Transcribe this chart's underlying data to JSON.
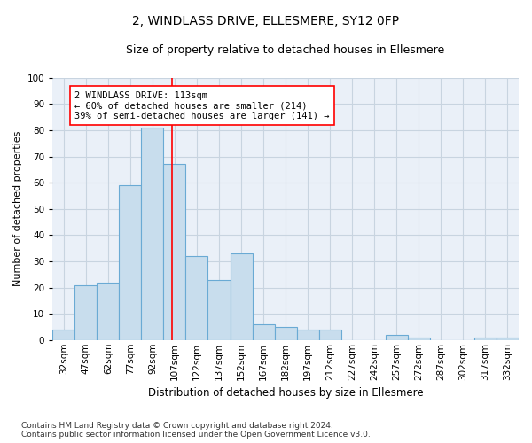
{
  "title": "2, WINDLASS DRIVE, ELLESMERE, SY12 0FP",
  "subtitle": "Size of property relative to detached houses in Ellesmere",
  "xlabel": "Distribution of detached houses by size in Ellesmere",
  "ylabel": "Number of detached properties",
  "categories": [
    "32sqm",
    "47sqm",
    "62sqm",
    "77sqm",
    "92sqm",
    "107sqm",
    "122sqm",
    "137sqm",
    "152sqm",
    "167sqm",
    "182sqm",
    "197sqm",
    "212sqm",
    "227sqm",
    "242sqm",
    "257sqm",
    "272sqm",
    "287sqm",
    "302sqm",
    "317sqm",
    "332sqm"
  ],
  "values": [
    4,
    21,
    22,
    59,
    81,
    67,
    32,
    23,
    33,
    6,
    5,
    4,
    4,
    0,
    0,
    2,
    1,
    0,
    0,
    1,
    1
  ],
  "bar_color": "#c8dded",
  "bar_edgecolor": "#6aaad4",
  "bar_linewidth": 0.8,
  "grid_color": "#c8d4e0",
  "background_color": "#ffffff",
  "plot_bg_color": "#eaf0f8",
  "annotation_text": "2 WINDLASS DRIVE: 113sqm\n← 60% of detached houses are smaller (214)\n39% of semi-detached houses are larger (141) →",
  "annotation_box_edgecolor": "red",
  "vline_color": "red",
  "vline_linewidth": 1.2,
  "ylim": [
    0,
    100
  ],
  "yticks": [
    0,
    10,
    20,
    30,
    40,
    50,
    60,
    70,
    80,
    90,
    100
  ],
  "footnote": "Contains HM Land Registry data © Crown copyright and database right 2024.\nContains public sector information licensed under the Open Government Licence v3.0.",
  "title_fontsize": 10,
  "subtitle_fontsize": 9,
  "xlabel_fontsize": 8.5,
  "ylabel_fontsize": 8,
  "tick_fontsize": 7.5,
  "annotation_fontsize": 7.5,
  "footnote_fontsize": 6.5
}
